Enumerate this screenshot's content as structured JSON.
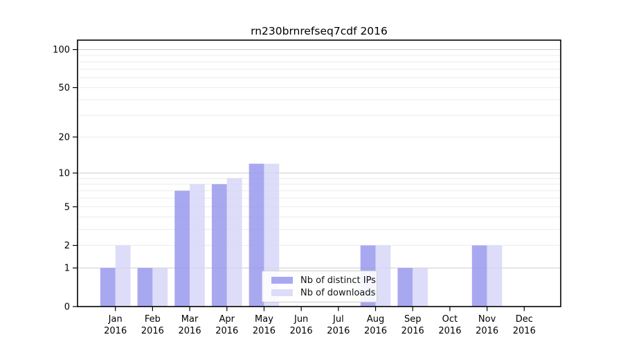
{
  "chart_data": {
    "type": "bar",
    "title": "rn230brnrefseq7cdf 2016",
    "categories": [
      "Jan",
      "Feb",
      "Mar",
      "Apr",
      "May",
      "Jun",
      "Jul",
      "Aug",
      "Sep",
      "Oct",
      "Nov",
      "Dec"
    ],
    "year_label": "2016",
    "series": [
      {
        "name": "Nb of distinct IPs",
        "color": "#9595ee",
        "values": [
          1,
          1,
          7,
          8,
          12,
          0,
          0,
          2,
          1,
          0,
          2,
          0
        ]
      },
      {
        "name": "Nb of downloads",
        "color": "#d5d5f8",
        "values": [
          2,
          1,
          8,
          9,
          12,
          0,
          0,
          2,
          1,
          0,
          2,
          0
        ]
      }
    ],
    "xlabel": "",
    "ylabel": "",
    "y_axis": {
      "scale": "log10(value+1)",
      "ticks": [
        0,
        1,
        2,
        5,
        10,
        20,
        50,
        100
      ],
      "range_top": 120
    },
    "gridlines": {
      "major": [
        1,
        10,
        100
      ],
      "minor": [
        2,
        3,
        4,
        5,
        6,
        7,
        8,
        9,
        20,
        30,
        40,
        50,
        60,
        70,
        80,
        90
      ]
    },
    "legend_position": "bottom-center",
    "colors": {
      "grid_major": "#cccccc",
      "grid_minor": "#ebebeb",
      "frame": "#000000",
      "text": "#000000",
      "background": "#ffffff"
    }
  }
}
